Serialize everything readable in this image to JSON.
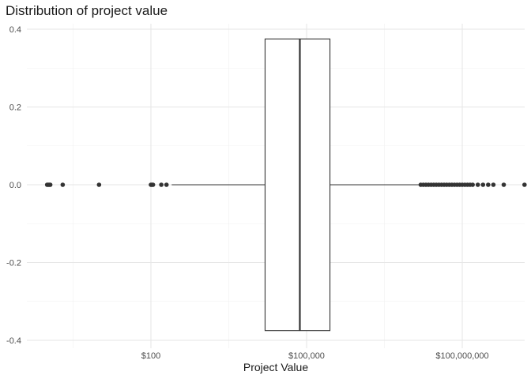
{
  "chart_data": {
    "type": "boxplot",
    "title": "Distribution of project value",
    "xlabel": "Project Value",
    "ylabel": "",
    "x_scale": "log10",
    "x_range": [
      1.2,
      12.1
    ],
    "y_range": [
      -0.42,
      0.42
    ],
    "grid": true,
    "x_ticks": [
      {
        "value": 2,
        "label": "$100"
      },
      {
        "value": 5,
        "label": "$100,000"
      },
      {
        "value": 8,
        "label": "$100,000,000"
      }
    ],
    "y_ticks": [
      {
        "value": 0.4,
        "label": "0.4"
      },
      {
        "value": 0.2,
        "label": "0.2"
      },
      {
        "value": 0.0,
        "label": "0.0"
      },
      {
        "value": -0.2,
        "label": "-0.2"
      },
      {
        "value": -0.4,
        "label": "-0.4"
      }
    ],
    "box": {
      "y_center": 0,
      "half_height": 0.375,
      "whisker_low_log10": 2.4,
      "q1_log10": 4.2,
      "median_log10": 4.87,
      "q3_log10": 5.45,
      "whisker_high_log10": 7.2
    },
    "outliers_log10": [
      0.0,
      0.02,
      0.04,
      0.06,
      0.3,
      1.0,
      2.0,
      2.02,
      2.04,
      2.2,
      2.3,
      7.2,
      7.25,
      7.3,
      7.35,
      7.4,
      7.45,
      7.5,
      7.55,
      7.6,
      7.65,
      7.7,
      7.75,
      7.8,
      7.85,
      7.9,
      7.95,
      8.0,
      8.05,
      8.1,
      8.15,
      8.2,
      8.3,
      8.4,
      8.5,
      8.6,
      8.8,
      9.2,
      9.8
    ]
  }
}
